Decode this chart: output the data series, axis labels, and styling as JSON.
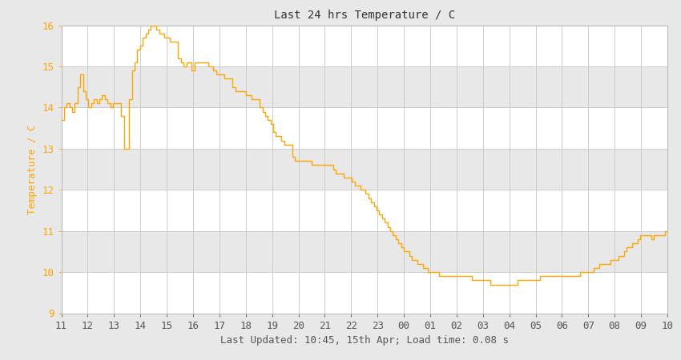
{
  "title": "Last 24 hrs Temperature / C",
  "xlabel": "Last Updated: 10:45, 15th Apr; Load time: 0.08 s",
  "ylabel": "Temperature / C",
  "line_color": "#FFA500",
  "bg_color_figure": "#E8E8E8",
  "bg_color_plot": "#FFFFFF",
  "band_colors": [
    "#FFFFFF",
    "#E8E8E8"
  ],
  "ylim": [
    9,
    16
  ],
  "yticks": [
    9,
    10,
    11,
    12,
    13,
    14,
    15,
    16
  ],
  "xtick_labels": [
    "11",
    "12",
    "13",
    "14",
    "15",
    "16",
    "17",
    "18",
    "19",
    "20",
    "21",
    "22",
    "23",
    "00",
    "01",
    "02",
    "03",
    "04",
    "05",
    "06",
    "07",
    "08",
    "09",
    "10"
  ],
  "y_values": [
    13.7,
    14.0,
    14.1,
    14.0,
    13.9,
    14.1,
    14.5,
    14.8,
    14.4,
    14.2,
    14.0,
    14.1,
    14.2,
    14.1,
    14.2,
    14.3,
    14.2,
    14.1,
    14.0,
    14.1,
    14.1,
    14.1,
    13.8,
    13.0,
    13.0,
    14.2,
    14.9,
    15.1,
    15.4,
    15.5,
    15.7,
    15.8,
    15.9,
    16.0,
    16.0,
    15.9,
    15.8,
    15.8,
    15.7,
    15.7,
    15.6,
    15.6,
    15.6,
    15.2,
    15.1,
    15.0,
    15.1,
    15.1,
    14.9,
    15.1,
    15.1,
    15.1,
    15.1,
    15.1,
    15.0,
    15.0,
    14.9,
    14.8,
    14.8,
    14.8,
    14.7,
    14.7,
    14.7,
    14.5,
    14.4,
    14.4,
    14.4,
    14.4,
    14.3,
    14.3,
    14.2,
    14.2,
    14.2,
    14.0,
    13.9,
    13.8,
    13.7,
    13.6,
    13.4,
    13.3,
    13.3,
    13.2,
    13.1,
    13.1,
    13.1,
    12.8,
    12.7,
    12.7,
    12.7,
    12.7,
    12.7,
    12.7,
    12.6,
    12.6,
    12.6,
    12.6,
    12.6,
    12.6,
    12.6,
    12.6,
    12.5,
    12.4,
    12.4,
    12.4,
    12.3,
    12.3,
    12.3,
    12.2,
    12.1,
    12.1,
    12.0,
    12.0,
    11.9,
    11.8,
    11.7,
    11.6,
    11.5,
    11.4,
    11.3,
    11.2,
    11.1,
    11.0,
    10.9,
    10.8,
    10.7,
    10.6,
    10.5,
    10.5,
    10.4,
    10.3,
    10.3,
    10.2,
    10.2,
    10.1,
    10.1,
    10.0,
    10.0,
    10.0,
    10.0,
    9.9,
    9.9,
    9.9,
    9.9,
    9.9,
    9.9,
    9.9,
    9.9,
    9.9,
    9.9,
    9.9,
    9.9,
    9.8,
    9.8,
    9.8,
    9.8,
    9.8,
    9.8,
    9.8,
    9.7,
    9.7,
    9.7,
    9.7,
    9.7,
    9.7,
    9.7,
    9.7,
    9.7,
    9.7,
    9.8,
    9.8,
    9.8,
    9.8,
    9.8,
    9.8,
    9.8,
    9.8,
    9.9,
    9.9,
    9.9,
    9.9,
    9.9,
    9.9,
    9.9,
    9.9,
    9.9,
    9.9,
    9.9,
    9.9,
    9.9,
    9.9,
    9.9,
    10.0,
    10.0,
    10.0,
    10.0,
    10.0,
    10.1,
    10.1,
    10.2,
    10.2,
    10.2,
    10.2,
    10.3,
    10.3,
    10.3,
    10.4,
    10.4,
    10.5,
    10.6,
    10.6,
    10.7,
    10.7,
    10.8,
    10.9,
    10.9,
    10.9,
    10.9,
    10.8,
    10.9,
    10.9,
    10.9,
    10.9,
    11.0,
    11.0
  ]
}
